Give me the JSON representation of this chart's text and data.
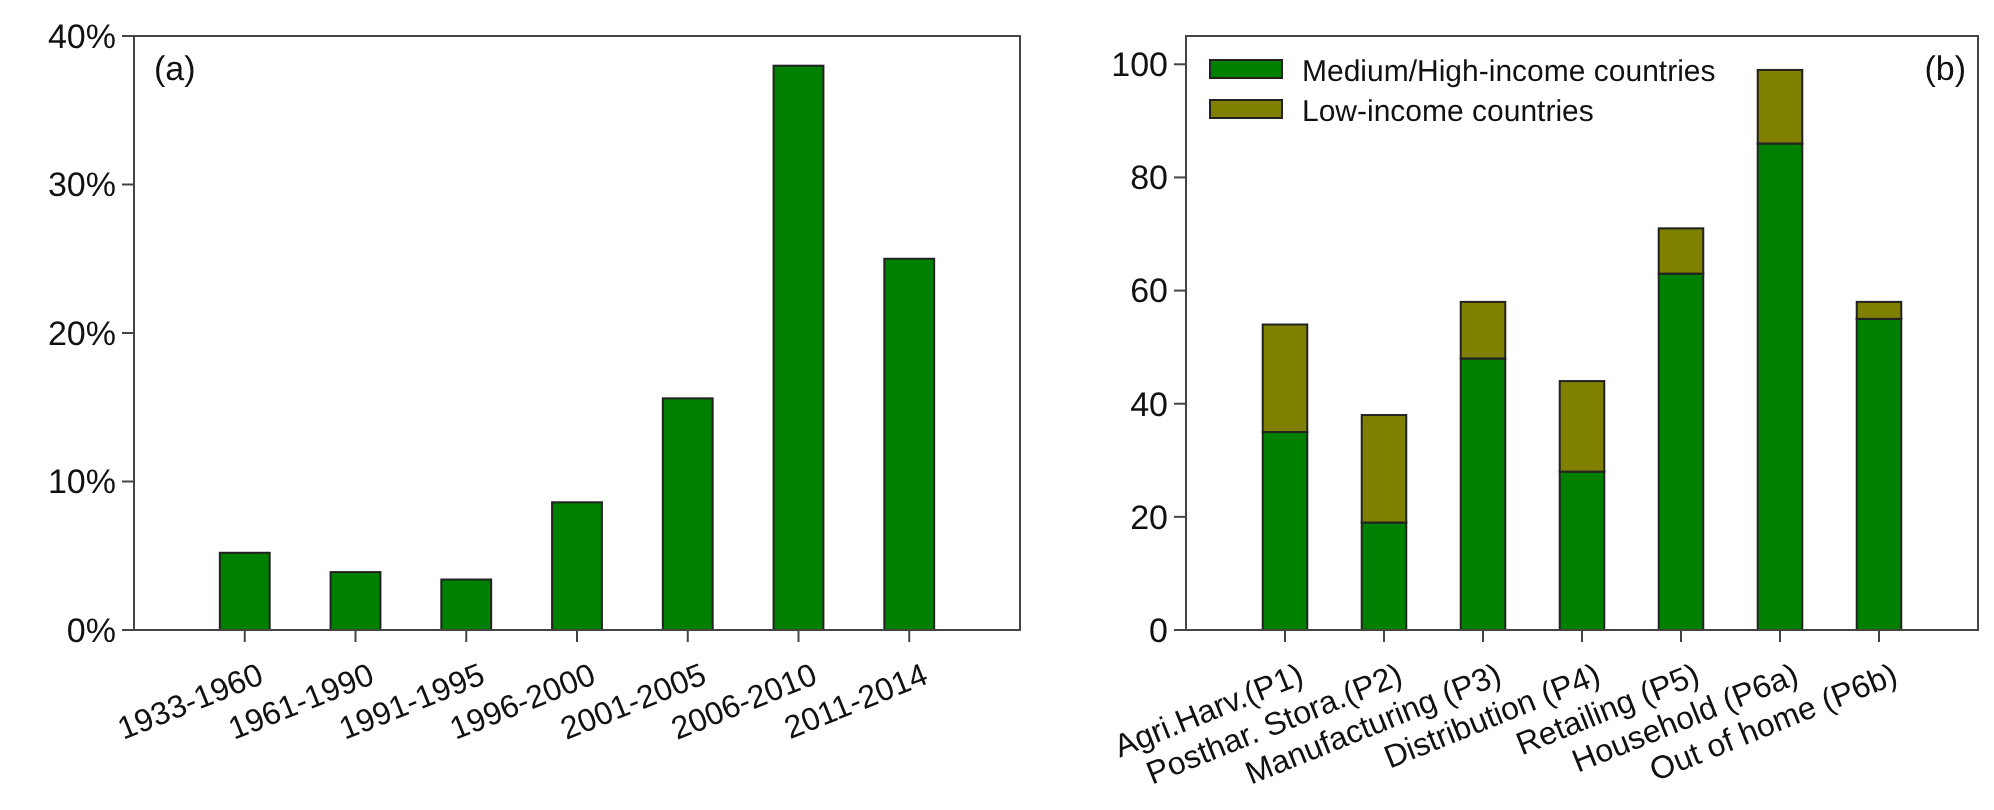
{
  "chart_data": [
    {
      "type": "bar",
      "annotations": [
        "(a)"
      ],
      "categories": [
        "1933-1960",
        "1961-1990",
        "1991-1995",
        "1996-2000",
        "2001-2005",
        "2006-2010",
        "2011-2014"
      ],
      "values": [
        5.2,
        3.9,
        3.4,
        8.6,
        15.6,
        38.0,
        25.0
      ],
      "color": "#008000",
      "ylim": [
        0,
        40
      ],
      "yticks": [
        {
          "value": 0,
          "label": "0%"
        },
        {
          "value": 10,
          "label": "10%"
        },
        {
          "value": 20,
          "label": "20%"
        },
        {
          "value": 30,
          "label": "30%"
        },
        {
          "value": 40,
          "label": "40%"
        }
      ],
      "grid": false,
      "legend": false
    },
    {
      "type": "bar",
      "annotations": [
        "(b)"
      ],
      "categories": [
        "Agri.Harv.(P1)",
        "Posthar. Stora.(P2)",
        "Manufacturing (P3)",
        "Distribution (P4)",
        "Retailing (P5)",
        "Household (P6a)",
        "Out of home (P6b)"
      ],
      "stacked": true,
      "series": [
        {
          "name": "Medium/High-income countries",
          "color": "#008000",
          "values": [
            35,
            19,
            48,
            28,
            63,
            86,
            55
          ]
        },
        {
          "name": "Low-income countries",
          "color": "#808000",
          "values": [
            19,
            19,
            10,
            16,
            8,
            13,
            3
          ]
        }
      ],
      "ylim": [
        0,
        105
      ],
      "yticks": [
        0,
        20,
        40,
        60,
        80,
        100
      ],
      "grid": false,
      "legend": "top left"
    }
  ]
}
